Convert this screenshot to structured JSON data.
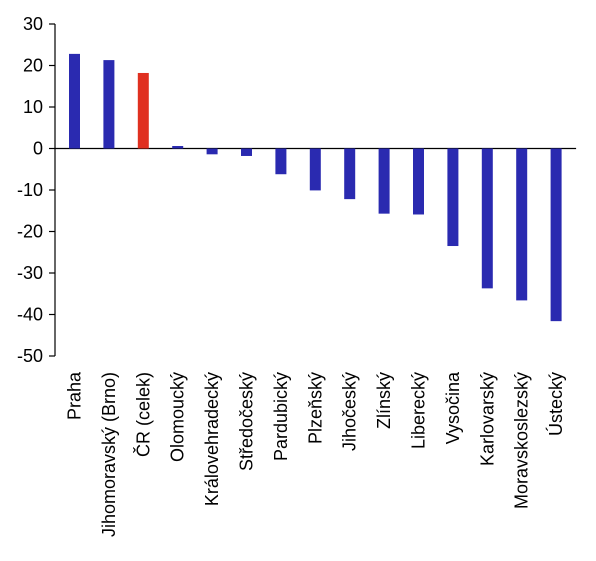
{
  "chart_data": {
    "type": "bar",
    "title": "",
    "xlabel": "",
    "ylabel": "",
    "ylim": [
      -50,
      30
    ],
    "yticks": [
      30,
      20,
      10,
      0,
      -10,
      -20,
      -30,
      -40,
      -50
    ],
    "grid": false,
    "legend": "none",
    "categories": [
      "Praha",
      "Jihomoravský (Brno)",
      "ČR (celek)",
      "Olomoucký",
      "Královehradecký",
      "Středočeský",
      "Pardubický",
      "Plzeňský",
      "Jihočeský",
      "Zlínský",
      "Liberecký",
      "Vysočina",
      "Karlovarský",
      "Moravskoslezský",
      "Ústecký"
    ],
    "values": [
      22.8,
      21.3,
      18.2,
      0.6,
      -1.4,
      -1.8,
      -6.2,
      -10.1,
      -12.2,
      -15.7,
      -15.9,
      -23.5,
      -33.7,
      -36.6,
      -41.6
    ],
    "colors": [
      "#2a2ab0",
      "#2a2ab0",
      "#e03020",
      "#2a2ab0",
      "#2a2ab0",
      "#2a2ab0",
      "#2a2ab0",
      "#2a2ab0",
      "#2a2ab0",
      "#2a2ab0",
      "#2a2ab0",
      "#2a2ab0",
      "#2a2ab0",
      "#2a2ab0",
      "#2a2ab0"
    ]
  }
}
